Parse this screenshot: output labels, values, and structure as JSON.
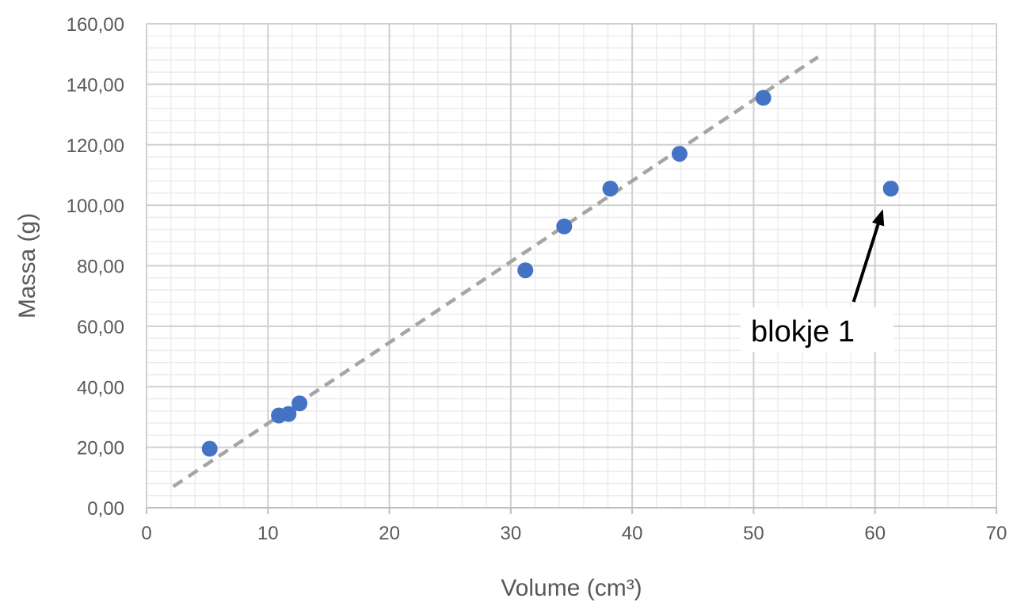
{
  "chart_data": {
    "type": "scatter",
    "title": "",
    "xlabel": "Volume (cm³)",
    "ylabel": "Massa (g)",
    "xlim": [
      0,
      70
    ],
    "ylim": [
      0,
      160
    ],
    "x_ticks": [
      0,
      10,
      20,
      30,
      40,
      50,
      60,
      70
    ],
    "x_tick_labels": [
      "0",
      "10",
      "20",
      "30",
      "40",
      "50",
      "60",
      "70"
    ],
    "y_ticks": [
      0,
      20,
      40,
      60,
      80,
      100,
      120,
      140,
      160
    ],
    "y_tick_labels": [
      "0,00",
      "20,00",
      "40,00",
      "60,00",
      "80,00",
      "100,00",
      "120,00",
      "140,00",
      "160,00"
    ],
    "grid": {
      "major": true,
      "minor": true
    },
    "legend": "none",
    "series": [
      {
        "color": "#4472C4",
        "points": [
          {
            "x": 5.2,
            "y": 19.5
          },
          {
            "x": 10.9,
            "y": 30.5
          },
          {
            "x": 11.7,
            "y": 31.0
          },
          {
            "x": 12.6,
            "y": 34.5
          },
          {
            "x": 31.2,
            "y": 78.5
          },
          {
            "x": 34.4,
            "y": 93.0
          },
          {
            "x": 38.2,
            "y": 105.5
          },
          {
            "x": 43.9,
            "y": 117.0
          },
          {
            "x": 50.8,
            "y": 135.5
          },
          {
            "x": 61.3,
            "y": 105.5
          }
        ]
      }
    ],
    "trendline": {
      "style": "dashed",
      "color": "#A5A5A5",
      "from": {
        "x": 2.2,
        "y": 7
      },
      "to": {
        "x": 55.3,
        "y": 149
      }
    },
    "annotations": [
      {
        "text": "blokje 1",
        "target": {
          "x": 61.3,
          "y": 105.5
        }
      }
    ]
  }
}
